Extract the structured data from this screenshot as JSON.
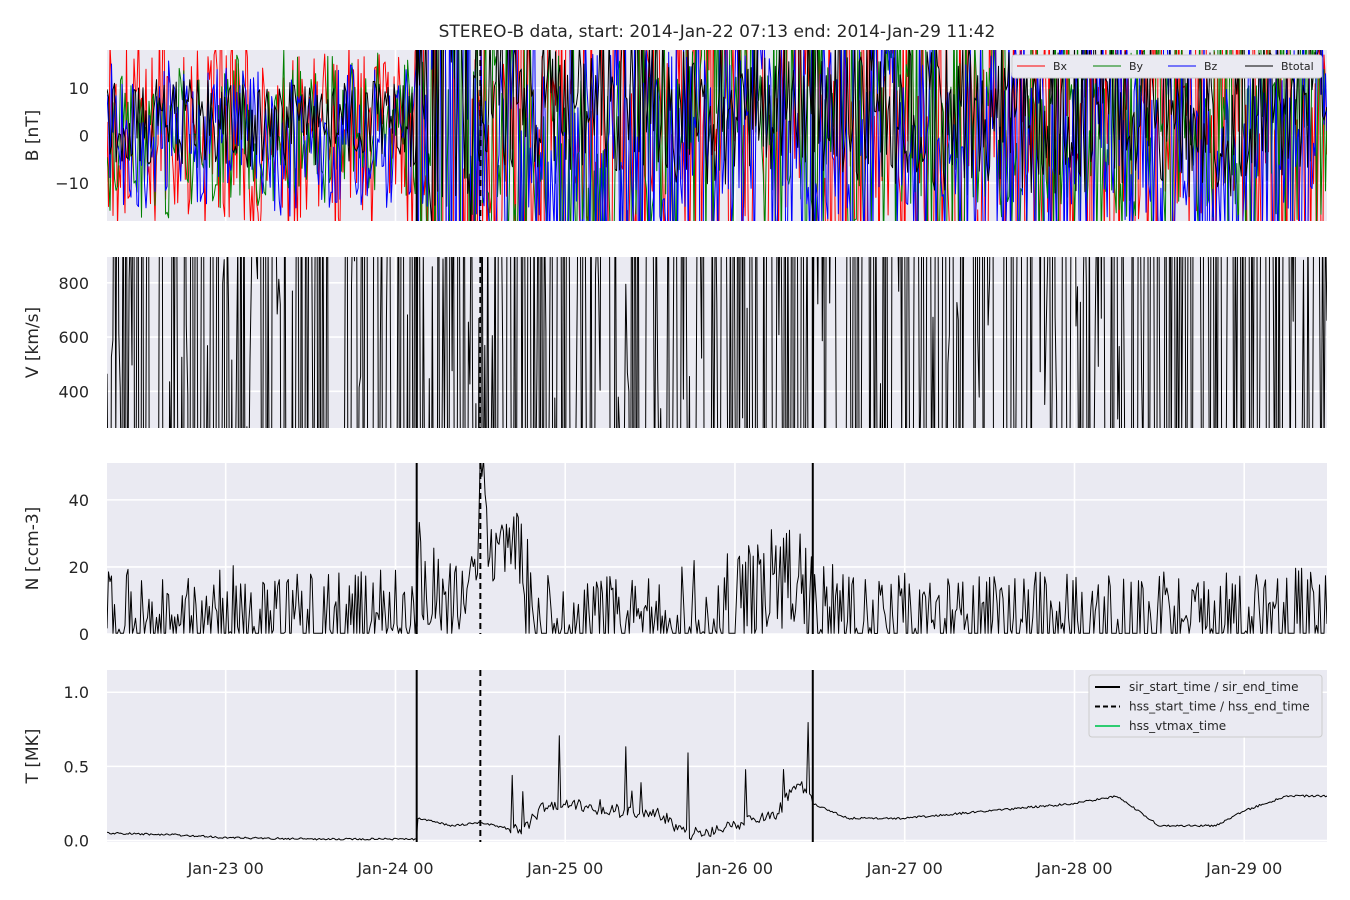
{
  "chart_data": {
    "type": "line",
    "title": "STEREO-B data, start: 2014-Jan-22 07:13  end: 2014-Jan-29 11:42",
    "x_range": [
      "2014-01-22 07:13",
      "2014-01-29 11:42"
    ],
    "x_ticks": [
      "Jan-23 00",
      "Jan-24 00",
      "Jan-25 00",
      "Jan-26 00",
      "Jan-27 00",
      "Jan-28 00",
      "Jan-29 00"
    ],
    "grid": true,
    "events": [
      {
        "name": "sir_start_time / sir_end_time",
        "style": "solid",
        "color": "#000000",
        "times": [
          "2014-01-24 03:00",
          "2014-01-26 11:00"
        ]
      },
      {
        "name": "hss_start_time / hss_end_time",
        "style": "dashed",
        "color": "#000000",
        "times": [
          "2014-01-24 12:00"
        ]
      },
      {
        "name": "hss_vtmax_time",
        "style": "solid",
        "color": "#2ecc71",
        "times": []
      }
    ],
    "panels": [
      {
        "ylabel": "B [nT]",
        "ylim": [
          -18,
          18
        ],
        "yticks": [
          -10,
          0,
          10
        ],
        "ytick_labels": [
          "−10",
          "0",
          "10"
        ],
        "legend_position": "top-right",
        "series": [
          {
            "name": "Bx",
            "color": "#ff0000",
            "x": [
              "01-22 07:13",
              "01-22 14:00",
              "01-22 20:00",
              "01-23 02:00",
              "01-23 08:00",
              "01-23 14:00",
              "01-23 20:00",
              "01-24 02:59",
              "01-24 06:00",
              "01-24 10:00",
              "01-24 14:00",
              "01-24 18:00",
              "01-24 22:00",
              "01-25 02:00",
              "01-25 06:00",
              "01-25 10:00",
              "01-25 14:00",
              "01-25 18:00",
              "01-25 22:00",
              "01-26 04:00",
              "01-26 11:00",
              "01-26 18:00",
              "01-27 00:00",
              "01-27 08:00",
              "01-27 16:00",
              "01-28 00:00",
              "01-28 08:00",
              "01-28 16:00",
              "01-29 00:00",
              "01-29 06:00",
              "01-29 11:42"
            ],
            "values": [
              -1,
              2,
              1,
              -1,
              -1,
              -1,
              -2,
              -2,
              -4,
              -3,
              -6,
              -2,
              0,
              -1,
              -3,
              -2,
              1,
              3,
              2,
              1,
              -3,
              -4,
              -3,
              -3,
              -3,
              -2,
              -2,
              -2,
              2,
              1,
              -4
            ]
          },
          {
            "name": "By",
            "color": "#008000",
            "x": [
              "01-22 07:13",
              "01-22 14:00",
              "01-22 20:00",
              "01-23 02:00",
              "01-23 08:00",
              "01-23 14:00",
              "01-23 20:00",
              "01-24 02:59",
              "01-24 06:00",
              "01-24 10:00",
              "01-24 14:00",
              "01-24 18:00",
              "01-24 22:00",
              "01-25 02:00",
              "01-25 06:00",
              "01-25 10:00",
              "01-25 14:00",
              "01-25 18:00",
              "01-25 22:00",
              "01-26 04:00",
              "01-26 11:00",
              "01-26 18:00",
              "01-27 00:00",
              "01-27 08:00",
              "01-27 16:00",
              "01-28 00:00",
              "01-28 08:00",
              "01-28 16:00",
              "01-29 00:00",
              "01-29 06:00",
              "01-29 11:42"
            ],
            "values": [
              -3,
              -2,
              -1,
              1,
              2,
              2,
              1,
              2,
              7,
              6,
              6,
              -5,
              -5,
              -6,
              -7,
              -5,
              2,
              4,
              5,
              5,
              4,
              3,
              2,
              2,
              3,
              3,
              2,
              2,
              3,
              4,
              5
            ]
          },
          {
            "name": "Bz",
            "color": "#0000ff",
            "x": [
              "01-22 07:13",
              "01-22 14:00",
              "01-22 20:00",
              "01-23 02:00",
              "01-23 08:00",
              "01-23 14:00",
              "01-23 20:00",
              "01-24 02:59",
              "01-24 06:00",
              "01-24 10:00",
              "01-24 14:00",
              "01-24 18:00",
              "01-24 22:00",
              "01-25 02:00",
              "01-25 06:00",
              "01-25 10:00",
              "01-25 14:00",
              "01-25 18:00",
              "01-25 22:00",
              "01-26 04:00",
              "01-26 11:00",
              "01-26 18:00",
              "01-27 00:00",
              "01-27 08:00",
              "01-27 16:00",
              "01-28 00:00",
              "01-28 08:00",
              "01-28 16:00",
              "01-29 00:00",
              "01-29 06:00",
              "01-29 11:42"
            ],
            "values": [
              0,
              0,
              0,
              0,
              -1,
              -1,
              0,
              1,
              -2,
              -4,
              -1,
              -2,
              -4,
              -5,
              -4,
              -4,
              -5,
              -3,
              -3,
              -3,
              2,
              -1,
              1,
              0,
              -1,
              0,
              -1,
              -1,
              -2,
              -4,
              1
            ]
          },
          {
            "name": "Btotal",
            "color": "#000000",
            "x": [
              "01-22 07:13",
              "01-22 14:00",
              "01-22 20:00",
              "01-23 02:00",
              "01-23 08:00",
              "01-23 14:00",
              "01-23 20:00",
              "01-24 02:59",
              "01-24 06:00",
              "01-24 10:00",
              "01-24 14:00",
              "01-24 18:00",
              "01-24 22:00",
              "01-25 02:00",
              "01-25 06:00",
              "01-25 10:00",
              "01-25 14:00",
              "01-25 18:00",
              "01-25 22:00",
              "01-26 04:00",
              "01-26 11:00",
              "01-26 18:00",
              "01-27 00:00",
              "01-27 08:00",
              "01-27 16:00",
              "01-28 00:00",
              "01-28 08:00",
              "01-28 16:00",
              "01-29 00:00",
              "01-29 06:00",
              "01-29 11:42"
            ],
            "values": [
              3,
              3,
              3,
              2,
              2,
              3,
              3,
              2,
              8,
              7,
              10,
              8,
              4,
              9,
              9,
              8,
              7,
              5,
              5,
              6,
              7,
              5,
              5,
              4,
              4,
              4,
              5,
              3,
              3,
              7,
              6
            ]
          }
        ]
      },
      {
        "ylabel": "V [km/s]",
        "ylim": [
          265,
          895
        ],
        "yticks": [
          400,
          600,
          800
        ],
        "ytick_labels": [
          "400",
          "600",
          "800"
        ],
        "series": [
          {
            "name": "",
            "color": "#000000",
            "x": [
              "01-22 07:13",
              "01-22 12:00",
              "01-22 18:00",
              "01-23 00:00",
              "01-23 06:00",
              "01-23 12:00",
              "01-23 18:00",
              "01-24 00:00",
              "01-24 02:59",
              "01-24 03:30",
              "01-24 08:00",
              "01-24 12:00",
              "01-24 16:00",
              "01-25 00:00",
              "01-25 06:00",
              "01-25 12:00",
              "01-25 18:00",
              "01-26 00:00",
              "01-26 06:00",
              "01-26 10:00",
              "01-26 11:00",
              "01-26 11:30",
              "01-26 18:00",
              "01-27 00:00",
              "01-27 08:00",
              "01-27 16:00",
              "01-28 00:00",
              "01-28 08:00",
              "01-28 16:00",
              "01-29 00:00",
              "01-29 06:00",
              "01-29 06:30",
              "01-29 11:42"
            ],
            "values": [
              410,
              380,
              345,
              330,
              315,
              305,
              300,
              290,
              290,
              390,
              360,
              375,
              350,
              345,
              355,
              370,
              420,
              470,
              510,
              560,
              610,
              660,
              665,
              700,
              690,
              700,
              700,
              680,
              690,
              640,
              590,
              660,
              660
            ]
          }
        ]
      },
      {
        "ylabel": "N [ccm-3]",
        "ylim": [
          0,
          51
        ],
        "yticks": [
          0,
          20,
          40
        ],
        "ytick_labels": [
          "0",
          "20",
          "40"
        ],
        "series": [
          {
            "name": "",
            "color": "#000000",
            "x": [
              "01-22 07:13",
              "01-22 14:00",
              "01-22 20:00",
              "01-23 00:00",
              "01-23 08:00",
              "01-23 16:00",
              "01-24 00:00",
              "01-24 02:59",
              "01-24 03:10",
              "01-24 05:00",
              "01-24 09:00",
              "01-24 11:00",
              "01-24 12:00",
              "01-24 14:00",
              "01-24 18:00",
              "01-24 20:00",
              "01-24 22:00",
              "01-25 04:00",
              "01-25 12:00",
              "01-25 18:00",
              "01-26 00:00",
              "01-26 06:00",
              "01-26 09:00",
              "01-26 10:00",
              "01-26 11:00",
              "01-26 11:30",
              "01-26 18:00",
              "01-27 00:00",
              "01-27 12:00",
              "01-28 00:00",
              "01-28 12:00",
              "01-29 00:00",
              "01-29 06:00",
              "01-29 11:42"
            ],
            "values": [
              2,
              3,
              4,
              4,
              2,
              3,
              2,
              2,
              22,
              14,
              12,
              25,
              40,
              28,
              18,
              3,
              3,
              1,
              0,
              4,
              7,
              15,
              20,
              8,
              6,
              3,
              3,
              1,
              1,
              1,
              1,
              1,
              3,
              3
            ]
          }
        ]
      },
      {
        "ylabel": "T [MK]",
        "ylim": [
          -0.01,
          1.15
        ],
        "yticks": [
          0.0,
          0.5,
          1.0
        ],
        "ytick_labels": [
          "0.0",
          "0.5",
          "1.0"
        ],
        "legend_position": "top-right",
        "series": [
          {
            "name": "",
            "color": "#000000",
            "x": [
              "01-22 07:13",
              "01-22 16:00",
              "01-23 00:00",
              "01-23 12:00",
              "01-24 00:00",
              "01-24 02:59",
              "01-24 03:10",
              "01-24 08:00",
              "01-24 12:00",
              "01-24 18:00",
              "01-24 20:00",
              "01-25 00:00",
              "01-25 06:00",
              "01-25 12:00",
              "01-25 18:00",
              "01-26 00:00",
              "01-26 06:00",
              "01-26 09:00",
              "01-26 11:00",
              "01-26 16:00",
              "01-27 00:00",
              "01-27 12:00",
              "01-28 00:00",
              "01-28 06:00",
              "01-28 12:00",
              "01-28 20:00",
              "01-29 00:00",
              "01-29 06:00",
              "01-29 11:42"
            ],
            "values": [
              0.05,
              0.04,
              0.02,
              0.01,
              0.01,
              0.01,
              0.15,
              0.1,
              0.12,
              0.06,
              0.2,
              0.25,
              0.2,
              0.2,
              0.05,
              0.1,
              0.2,
              0.4,
              0.25,
              0.15,
              0.15,
              0.2,
              0.25,
              0.3,
              0.1,
              0.1,
              0.2,
              0.3,
              0.3
            ]
          }
        ]
      }
    ]
  }
}
